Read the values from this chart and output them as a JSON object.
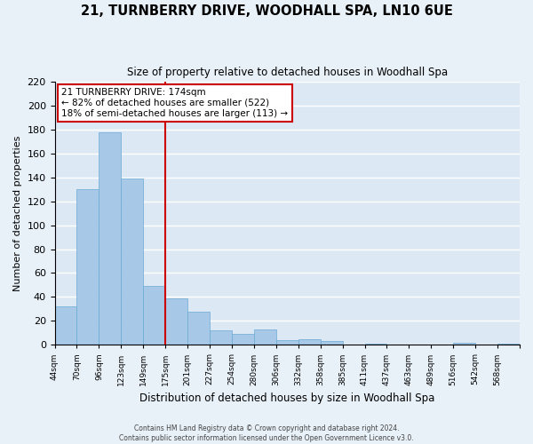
{
  "title": "21, TURNBERRY DRIVE, WOODHALL SPA, LN10 6UE",
  "subtitle": "Size of property relative to detached houses in Woodhall Spa",
  "xlabel": "Distribution of detached houses by size in Woodhall Spa",
  "ylabel": "Number of detached properties",
  "bar_color": "#a8c8e8",
  "bar_edge_color": "#6aaad4",
  "background_color": "#dce9f5",
  "fig_background_color": "#e8f0f8",
  "grid_color": "#ffffff",
  "annotation_line_color": "#cc0000",
  "annotation_text_line1": "21 TURNBERRY DRIVE: 174sqm",
  "annotation_text_line2": "← 82% of detached houses are smaller (522)",
  "annotation_text_line3": "18% of semi-detached houses are larger (113) →",
  "footer_line1": "Contains HM Land Registry data © Crown copyright and database right 2024.",
  "footer_line2": "Contains public sector information licensed under the Open Government Licence v3.0.",
  "bin_labels": [
    "44sqm",
    "70sqm",
    "96sqm",
    "123sqm",
    "149sqm",
    "175sqm",
    "201sqm",
    "227sqm",
    "254sqm",
    "280sqm",
    "306sqm",
    "332sqm",
    "358sqm",
    "385sqm",
    "411sqm",
    "437sqm",
    "463sqm",
    "489sqm",
    "516sqm",
    "542sqm",
    "568sqm"
  ],
  "counts": [
    32,
    130,
    178,
    139,
    49,
    39,
    28,
    12,
    9,
    13,
    4,
    5,
    3,
    0,
    1,
    0,
    0,
    0,
    2,
    0,
    1
  ],
  "ylim": [
    0,
    220
  ],
  "yticks": [
    0,
    20,
    40,
    60,
    80,
    100,
    120,
    140,
    160,
    180,
    200,
    220
  ],
  "annot_line_bar_index": 5
}
